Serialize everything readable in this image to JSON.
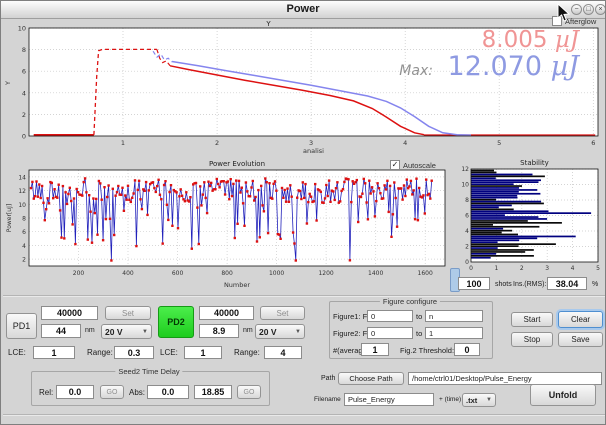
{
  "window": {
    "title": "Power",
    "controls": {
      "minimize": "−",
      "maximize": "□",
      "close": "×"
    }
  },
  "top_section": {
    "afterglow": {
      "label": "Afterglow",
      "checked": false
    },
    "readout_current": {
      "value": "8.005",
      "unit": "µJ",
      "color": "#f09595"
    },
    "readout_max": {
      "prefix": "Max:",
      "value": "12.070",
      "unit": "µJ",
      "color": "#8e9ae2"
    }
  },
  "evolution_section": {
    "autoscale": {
      "label": "Autoscale",
      "checked": true
    },
    "stats": {
      "shots_value": "100",
      "shots_label": "shots",
      "rms_label": "Ins.(RMS):",
      "rms_value": "38.04",
      "percent_label": "%"
    }
  },
  "controls": {
    "pd1": {
      "button": "PD1",
      "frequency": "40000",
      "set": "Set",
      "wavelength": "44",
      "nm_label": "nm",
      "voltage": "20 V",
      "lce_label": "LCE:",
      "lce": "1",
      "range_label": "Range:",
      "range": "0.3"
    },
    "pd2": {
      "button": "PD2",
      "frequency": "40000",
      "set": "Set",
      "wavelength": "8.9",
      "nm_label": "nm",
      "voltage": "20 V",
      "lce_label": "LCE:",
      "lce": "1",
      "range_label": "Range:",
      "range": "4"
    },
    "seed2": {
      "title": "Seed2 Time Delay",
      "rel_label": "Rel:",
      "rel_value": "0.0",
      "go1": "GO",
      "abs_label": "Abs:",
      "abs_value": "0.0",
      "abs_readback": "18.85",
      "go2": "GO"
    },
    "figure_configure": {
      "title": "Figure configure",
      "fig1_label": "Figure1: From",
      "fig1_from": "0",
      "to1": "to",
      "fig1_to": "n",
      "fig2_label": "Figure2: From",
      "fig2_from": "0",
      "to2": "to",
      "fig2_to": "1",
      "avg_label": "#(average):",
      "avg_value": "1",
      "threshold_label": "Fig.2 Threshold:",
      "threshold_value": "0"
    },
    "actions": {
      "start": "Start",
      "stop": "Stop",
      "clear": "Clear",
      "save": "Save"
    },
    "file": {
      "path_label": "Path",
      "choose_path": "Choose Path",
      "path_value": "/home/ctrl01/Desktop/Pulse_Energy",
      "filename_label": "Filename",
      "filename_value": "Pulse_Energy",
      "time_label": "+ (time)",
      "format_value": ".txt",
      "unfold": "Unfold"
    }
  },
  "chart_data": [
    {
      "id": "pulse_profile",
      "type": "line",
      "title": "Y",
      "xlabel": "analisi",
      "ylabel": "Y",
      "xlim": [
        0,
        6.05
      ],
      "ylim": [
        0,
        10
      ],
      "xticks": [
        1,
        2,
        3,
        4,
        5,
        6
      ],
      "yticks": [
        0,
        2,
        4,
        6,
        8,
        10
      ],
      "grid": true,
      "legend": "none",
      "annotations": [
        "8.005 µJ",
        "Max: 12.070 µJ"
      ],
      "series": [
        {
          "name": "red-baseline-pre",
          "color": "#dd1111",
          "width": 2.2,
          "dash": null,
          "points": [
            [
              0.05,
              0.08
            ],
            [
              0.69,
              0.08
            ]
          ]
        },
        {
          "name": "red-rise-plateau-dashed",
          "color": "#dd1111",
          "width": 1.3,
          "dash": "4,3",
          "points": [
            [
              0.69,
              0.1
            ],
            [
              0.72,
              5.5
            ],
            [
              0.74,
              7.9
            ],
            [
              0.78,
              8.02
            ],
            [
              1.36,
              8.02
            ]
          ]
        },
        {
          "name": "red-drop-dashed",
          "color": "#dd1111",
          "width": 1.2,
          "dash": "4,3",
          "points": [
            [
              1.36,
              8.02
            ],
            [
              1.39,
              7.2
            ],
            [
              1.42,
              6.8
            ],
            [
              1.46,
              6.95
            ],
            [
              1.5,
              6.5
            ]
          ]
        },
        {
          "name": "red-decay",
          "color": "#dd1111",
          "width": 1.5,
          "dash": null,
          "points": [
            [
              1.5,
              6.5
            ],
            [
              1.7,
              6.15
            ],
            [
              2.0,
              5.65
            ],
            [
              2.3,
              5.15
            ],
            [
              2.6,
              4.7
            ],
            [
              2.9,
              4.25
            ],
            [
              3.2,
              3.75
            ],
            [
              3.45,
              3.25
            ],
            [
              3.65,
              2.55
            ],
            [
              3.8,
              1.75
            ],
            [
              3.95,
              0.9
            ],
            [
              4.1,
              0.3
            ],
            [
              4.2,
              0.12
            ]
          ]
        },
        {
          "name": "red-baseline-post",
          "color": "#dd1111",
          "width": 1.5,
          "dash": null,
          "points": [
            [
              4.2,
              0.08
            ],
            [
              6.02,
              0.08
            ]
          ]
        },
        {
          "name": "blue-wiggle-dashed",
          "color": "#8585ee",
          "width": 1.2,
          "dash": "4,3",
          "points": [
            [
              1.32,
              7.85
            ],
            [
              1.36,
              7.3
            ],
            [
              1.4,
              7.6
            ],
            [
              1.44,
              7.05
            ],
            [
              1.48,
              7.2
            ],
            [
              1.52,
              6.85
            ]
          ]
        },
        {
          "name": "blue-decay",
          "color": "#8585ee",
          "width": 1.5,
          "dash": null,
          "points": [
            [
              1.52,
              6.9
            ],
            [
              1.8,
              6.5
            ],
            [
              2.1,
              6.05
            ],
            [
              2.4,
              5.6
            ],
            [
              2.7,
              5.15
            ],
            [
              3.0,
              4.7
            ],
            [
              3.3,
              4.2
            ],
            [
              3.6,
              3.7
            ],
            [
              3.8,
              3.2
            ],
            [
              3.95,
              2.6
            ],
            [
              4.1,
              1.8
            ],
            [
              4.25,
              0.9
            ],
            [
              4.4,
              0.3
            ],
            [
              4.55,
              0.12
            ],
            [
              4.7,
              0.08
            ]
          ]
        }
      ]
    },
    {
      "id": "power_evolution",
      "type": "line-scatter",
      "title": "Power Evolution",
      "xlabel": "Number",
      "ylabel": "Power[uJ]",
      "xlim": [
        0,
        1680
      ],
      "ylim": [
        1,
        15
      ],
      "xticks": [
        200,
        400,
        600,
        800,
        1000,
        1200,
        1400,
        1600
      ],
      "yticks": [
        2,
        4,
        6,
        8,
        10,
        12,
        14
      ],
      "grid": true,
      "line_color": "#2222bb",
      "marker_color": "#dd1111",
      "series_note": "~290 noisy shot energies: band 10-14 uJ with frequent dips down to 2-8 uJ; regenerated pseudo-randomly from generator params",
      "generator": {
        "seed": 42,
        "n": 290,
        "x_start": 8,
        "x_step": 5.6,
        "band_min": 10.2,
        "band_span": 3.6,
        "dip_prob": 0.28,
        "dip_max": 8.5,
        "min": 1.8
      }
    },
    {
      "id": "stability",
      "type": "barh",
      "title": "Stability",
      "xlabel": "",
      "ylabel": "",
      "xlim": [
        0,
        5
      ],
      "ylim": [
        0,
        12
      ],
      "xticks": [
        0,
        1,
        2,
        3,
        4,
        5
      ],
      "yticks": [
        0,
        2,
        4,
        6,
        8,
        10,
        12
      ],
      "grid": true,
      "bars_note": "~46 thin horizontal bars starting at x=0, lengths mostly 0.7-3, a few up to 4.8, black and navy",
      "generator": {
        "seed": 7,
        "n": 46,
        "y_start": 0.55,
        "y_step": 0.25,
        "colors": [
          "#0a0a0a",
          "#00007f"
        ]
      }
    }
  ]
}
